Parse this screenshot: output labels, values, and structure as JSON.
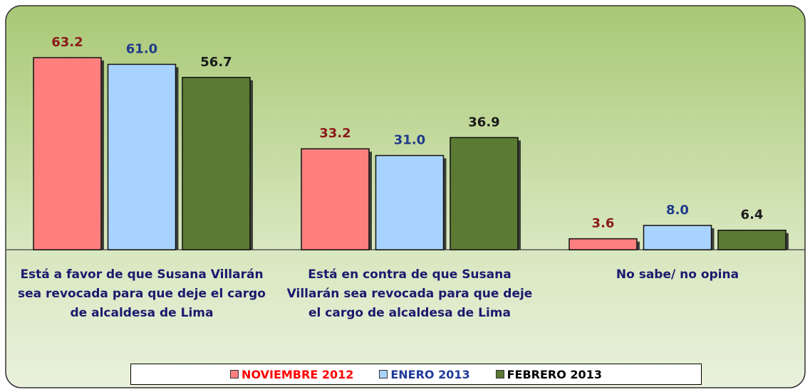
{
  "chart_data": {
    "type": "bar",
    "categories": [
      "Está a favor de que Susana Villarán sea revocada para que deje el cargo de alcaldesa de Lima",
      "Está en contra de que Susana Villarán sea revocada para que deje el cargo de alcaldesa de Lima",
      "No sabe/ no opina"
    ],
    "series": [
      {
        "name": "NOVIEMBRE 2012",
        "color": "#ff7f7f",
        "label_color": "#8b1a1a",
        "legend_color": "#ff0000",
        "values": [
          63.2,
          33.2,
          3.6
        ]
      },
      {
        "name": "ENERO 2013",
        "color": "#a9d3ff",
        "label_color": "#1f3a8a",
        "legend_color": "#1f3a9a",
        "values": [
          61.0,
          31.0,
          8.0
        ],
        "value_labels": [
          "61.0",
          "31.0",
          "8.0"
        ]
      },
      {
        "name": "FEBRERO 2013",
        "color": "#5b7a33",
        "label_color": "#1a1a1a",
        "legend_color": "#000000",
        "values": [
          56.7,
          36.9,
          6.4
        ]
      }
    ],
    "ylim": [
      0,
      70
    ],
    "legend": "bottom"
  }
}
